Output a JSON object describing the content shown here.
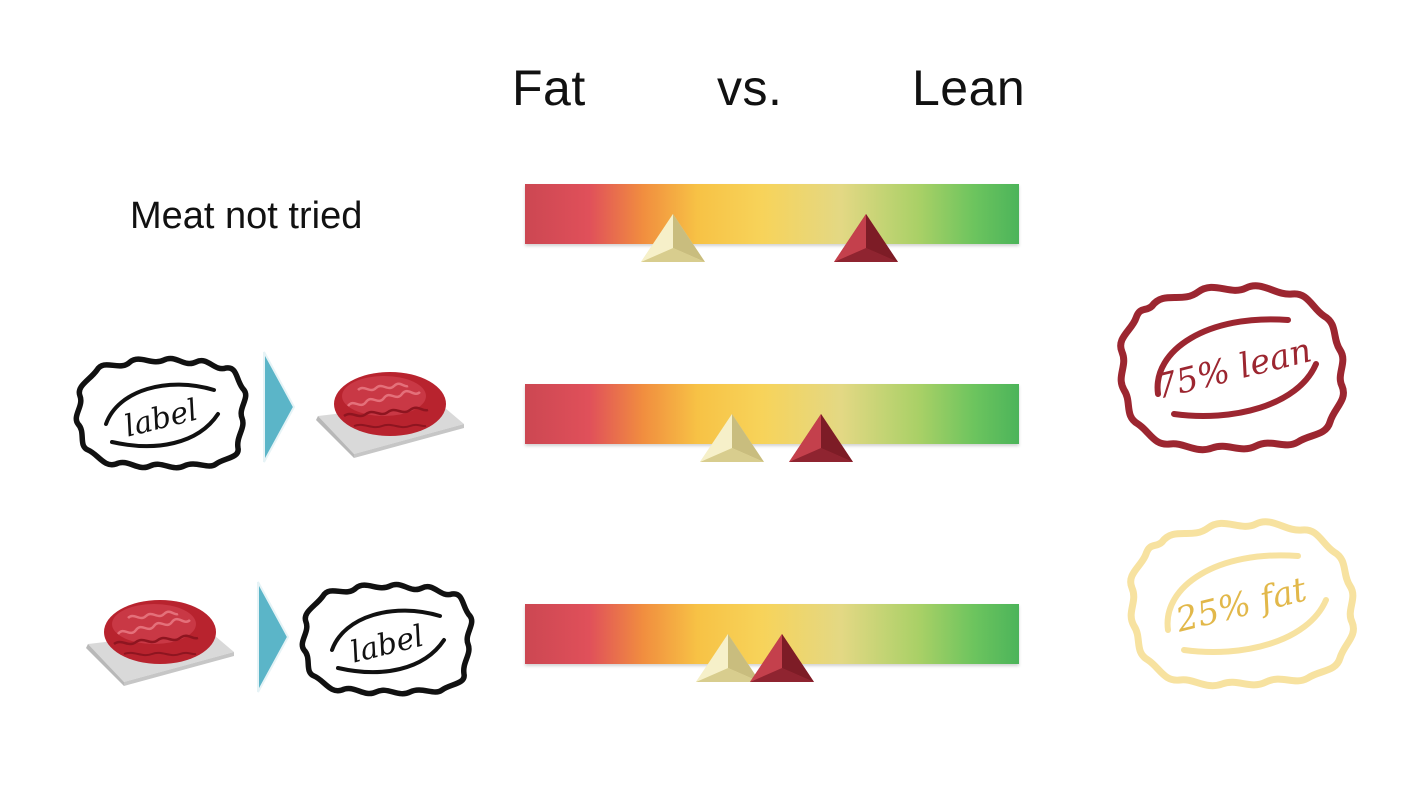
{
  "header": {
    "fat": "Fat",
    "vs": "vs.",
    "lean": "Lean"
  },
  "rows": [
    {
      "label": "Meat not tried",
      "sequence": [],
      "markers": {
        "light_pos": 0.3,
        "dark_pos": 0.69
      }
    },
    {
      "label": "",
      "sequence": [
        "label",
        "arrow",
        "meat"
      ],
      "markers": {
        "light_pos": 0.42,
        "dark_pos": 0.6
      }
    },
    {
      "label": "",
      "sequence": [
        "meat",
        "arrow",
        "label"
      ],
      "markers": {
        "light_pos": 0.41,
        "dark_pos": 0.52
      }
    }
  ],
  "tags": {
    "label_text": "label"
  },
  "stamps": {
    "lean": {
      "text": "75% lean",
      "color": "#9c2630"
    },
    "fat": {
      "text": "25% fat",
      "color": "#e2b84a",
      "ring_color": "#f7e2a0"
    }
  },
  "colors": {
    "marker_light": "#ede3a6",
    "marker_dark": "#a52a36",
    "arrow": "#5bb5c8",
    "meat": "#b8232e"
  }
}
